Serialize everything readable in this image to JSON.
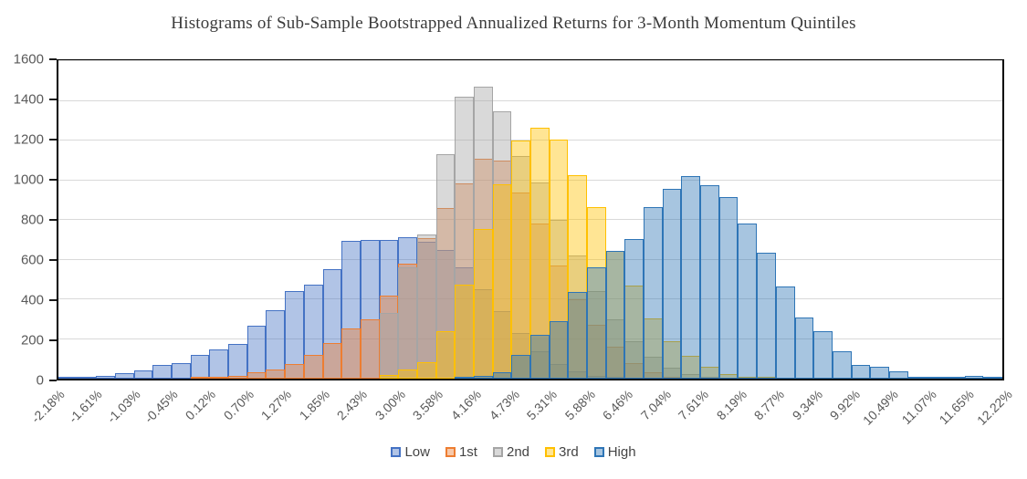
{
  "title": "Histograms of Sub-Sample Bootstrapped Annualized Returns for 3-Month Momentum Quintiles",
  "colors": {
    "title_text": "#3B3B3B",
    "axis_text": "#595959",
    "gridline": "#D9D9D9",
    "plot_border": "#000000",
    "low": "#4472C4",
    "first": "#ED7D31",
    "second": "#A5A5A5",
    "third": "#FFC000",
    "high": "#2E75B6"
  },
  "chart_data": {
    "type": "bar",
    "subtype": "overlapping-histograms",
    "title": "Histograms of Sub-Sample Bootstrapped Annualized Returns for 3-Month Momentum Quintiles",
    "grid": "horizontal",
    "legend_position": "bottom",
    "x_min_pct": -2.18,
    "x_max_pct": 12.22,
    "bin_width_pct": 0.288,
    "n_bins": 50,
    "fill_opacity": 0.42,
    "x_axis": {
      "tick_labels": [
        "-2.18%",
        "-1.61%",
        "-1.03%",
        "-0.45%",
        "0.12%",
        "0.70%",
        "1.27%",
        "1.85%",
        "2.43%",
        "3.00%",
        "3.58%",
        "4.16%",
        "4.73%",
        "5.31%",
        "5.88%",
        "6.46%",
        "7.04%",
        "7.61%",
        "8.19%",
        "8.77%",
        "9.34%",
        "9.92%",
        "10.49%",
        "11.07%",
        "11.65%",
        "12.22%"
      ]
    },
    "y_axis": {
      "min": 0,
      "max": 1600,
      "step": 200,
      "tick_labels": [
        "0",
        "200",
        "400",
        "600",
        "800",
        "1000",
        "1200",
        "1400",
        "1600"
      ]
    },
    "series": [
      {
        "name": "Low",
        "color": "#4472C4",
        "first_bin": 0,
        "values": [
          2,
          5,
          15,
          27,
          42,
          70,
          77,
          120,
          145,
          175,
          267,
          345,
          440,
          475,
          550,
          695,
          697,
          700,
          715,
          692,
          650,
          560,
          450,
          340,
          230,
          140,
          75,
          35,
          12,
          4
        ]
      },
      {
        "name": "1st",
        "color": "#ED7D31",
        "first_bin": 7,
        "values": [
          3,
          8,
          15,
          30,
          45,
          75,
          120,
          180,
          255,
          300,
          420,
          580,
          710,
          860,
          985,
          1110,
          1100,
          940,
          780,
          570,
          400,
          270,
          160,
          80,
          30,
          10
        ]
      },
      {
        "name": "2nd",
        "color": "#A5A5A5",
        "first_bin": 17,
        "values": [
          330,
          560,
          725,
          1130,
          1420,
          1470,
          1345,
          1120,
          990,
          800,
          620,
          440,
          300,
          190,
          110,
          55,
          25,
          10
        ]
      },
      {
        "name": "3rd",
        "color": "#FFC000",
        "first_bin": 17,
        "values": [
          20,
          47,
          85,
          240,
          473,
          753,
          981,
          1198,
          1265,
          1205,
          1025,
          865,
          645,
          470,
          305,
          190,
          115,
          60,
          25,
          10,
          4
        ]
      },
      {
        "name": "High",
        "color": "#2E75B6",
        "first_bin": 21,
        "values": [
          5,
          15,
          30,
          120,
          220,
          290,
          435,
          560,
          645,
          705,
          865,
          955,
          1020,
          975,
          915,
          780,
          635,
          465,
          310,
          240,
          140,
          70,
          60,
          35,
          10,
          4,
          2,
          12,
          8
        ]
      }
    ]
  }
}
